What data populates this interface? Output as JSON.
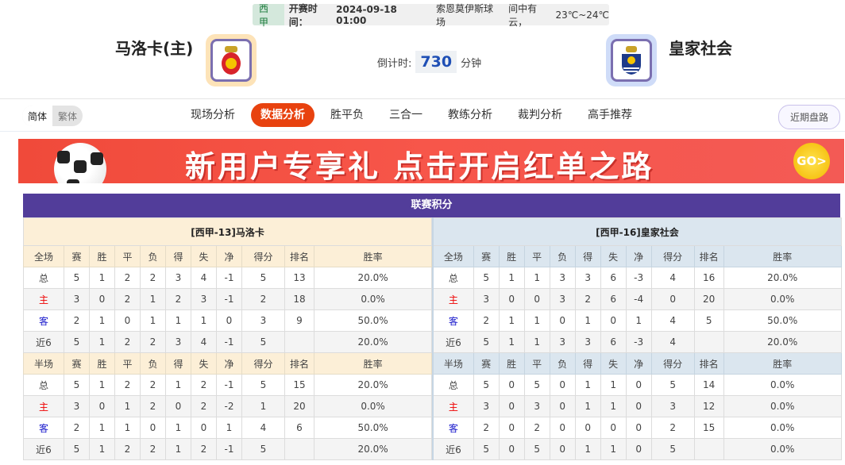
{
  "match": {
    "league": "西甲",
    "time_label": "开赛时间：",
    "time": "2024-09-18 01:00",
    "venue": "索恩莫伊斯球场",
    "weather": "间中有云，",
    "temp": "23℃~24℃"
  },
  "home": {
    "name": "马洛卡(主)",
    "logo_color": "#fde3b8"
  },
  "away": {
    "name": "皇家社会",
    "logo_color": "#cfdcf8"
  },
  "countdown": {
    "label": "倒计时:",
    "value": "730",
    "unit": "分钟"
  },
  "lang": {
    "simplified": "简体",
    "traditional": "繁体"
  },
  "tabs": [
    "现场分析",
    "数据分析",
    "胜平负",
    "三合一",
    "教练分析",
    "裁判分析",
    "高手推荐"
  ],
  "active_tab": "数据分析",
  "recent_btn": "近期盘路",
  "banner": {
    "text": "新用户专享礼  点击开启红单之路",
    "go": "GO>"
  },
  "standings": {
    "title": "联赛积分",
    "full_cols": [
      "全场",
      "赛",
      "胜",
      "平",
      "负",
      "得",
      "失",
      "净",
      "得分",
      "排名",
      "胜率"
    ],
    "half_cols": [
      "半场",
      "赛",
      "胜",
      "平",
      "负",
      "得",
      "失",
      "净",
      "得分",
      "排名",
      "胜率"
    ],
    "left": {
      "header": "[西甲-13]马洛卡",
      "full": [
        [
          "总",
          "5",
          "1",
          "2",
          "2",
          "3",
          "4",
          "-1",
          "5",
          "13",
          "20.0%"
        ],
        [
          "主",
          "3",
          "0",
          "2",
          "1",
          "2",
          "3",
          "-1",
          "2",
          "18",
          "0.0%"
        ],
        [
          "客",
          "2",
          "1",
          "0",
          "1",
          "1",
          "1",
          "0",
          "3",
          "9",
          "50.0%"
        ],
        [
          "近6",
          "5",
          "1",
          "2",
          "2",
          "3",
          "4",
          "-1",
          "5",
          "",
          "20.0%"
        ]
      ],
      "half": [
        [
          "总",
          "5",
          "1",
          "2",
          "2",
          "1",
          "2",
          "-1",
          "5",
          "15",
          "20.0%"
        ],
        [
          "主",
          "3",
          "0",
          "1",
          "2",
          "0",
          "2",
          "-2",
          "1",
          "20",
          "0.0%"
        ],
        [
          "客",
          "2",
          "1",
          "1",
          "0",
          "1",
          "0",
          "1",
          "4",
          "6",
          "50.0%"
        ],
        [
          "近6",
          "5",
          "1",
          "2",
          "2",
          "1",
          "2",
          "-1",
          "5",
          "",
          "20.0%"
        ]
      ]
    },
    "right": {
      "header": "[西甲-16]皇家社会",
      "full": [
        [
          "总",
          "5",
          "1",
          "1",
          "3",
          "3",
          "6",
          "-3",
          "4",
          "16",
          "20.0%"
        ],
        [
          "主",
          "3",
          "0",
          "0",
          "3",
          "2",
          "6",
          "-4",
          "0",
          "20",
          "0.0%"
        ],
        [
          "客",
          "2",
          "1",
          "1",
          "0",
          "1",
          "0",
          "1",
          "4",
          "5",
          "50.0%"
        ],
        [
          "近6",
          "5",
          "1",
          "1",
          "3",
          "3",
          "6",
          "-3",
          "4",
          "",
          "20.0%"
        ]
      ],
      "half": [
        [
          "总",
          "5",
          "0",
          "5",
          "0",
          "1",
          "1",
          "0",
          "5",
          "14",
          "0.0%"
        ],
        [
          "主",
          "3",
          "0",
          "3",
          "0",
          "1",
          "1",
          "0",
          "3",
          "12",
          "0.0%"
        ],
        [
          "客",
          "2",
          "0",
          "2",
          "0",
          "0",
          "0",
          "0",
          "2",
          "15",
          "0.0%"
        ],
        [
          "近6",
          "5",
          "0",
          "5",
          "0",
          "1",
          "1",
          "0",
          "5",
          "",
          "0.0%"
        ]
      ]
    }
  }
}
